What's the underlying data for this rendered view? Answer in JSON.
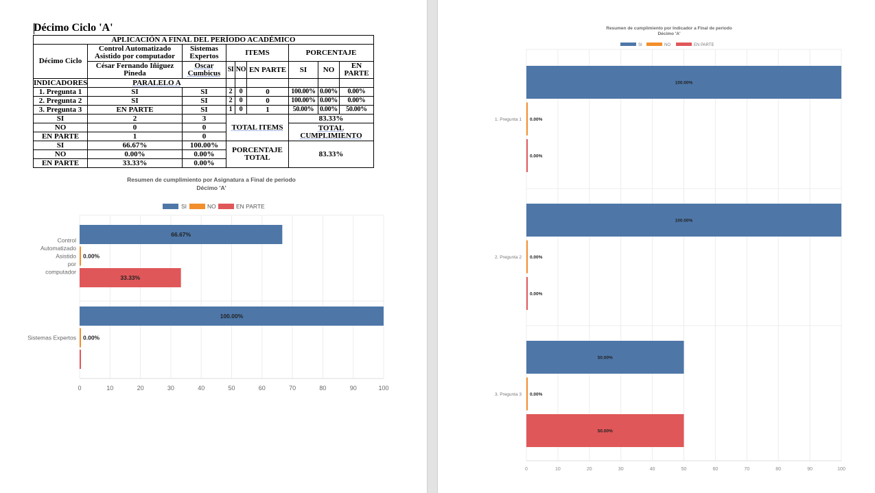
{
  "document": {
    "title": "Décimo Ciclo 'A'"
  },
  "sheet": {
    "banner": "APLICACIÓN A FINAL DEL PERÍODO ACADÉMICO",
    "h_ciclo": "Décimo Ciclo",
    "h_subject1": "Control Automatizado Asistido por computador",
    "h_subject2": "Sistemas Expertos",
    "h_items": "ITEMS",
    "h_porcentaje": "PORCENTAJE",
    "teacher1": "César Fernando Iñiguez Pineda",
    "teacher2": "Oscar Cumbicus",
    "h_si": "SI",
    "h_no": "NO",
    "h_enparte": "EN PARTE",
    "p_si": "SI",
    "p_no": "NO",
    "p_enparte": "EN PARTE",
    "indicadores": "INDICADORES",
    "paralelo": "PARALELO A",
    "rows": [
      {
        "q": "1. Pregunta 1",
        "a1": "SI",
        "a2": "SI",
        "si": "2",
        "no": "0",
        "ep": "0",
        "psi": "100.00%",
        "pno": "0.00%",
        "pep": "0.00%"
      },
      {
        "q": "2. Pregunta 2",
        "a1": "SI",
        "a2": "SI",
        "si": "2",
        "no": "0",
        "ep": "0",
        "psi": "100.00%",
        "pno": "0.00%",
        "pep": "0.00%"
      },
      {
        "q": "3. Pregunta 3",
        "a1": "EN PARTE",
        "a2": "SI",
        "si": "1",
        "no": "0",
        "ep": "1",
        "psi": "50.00%",
        "pno": "0.00%",
        "pep": "50.00%"
      }
    ],
    "counts": [
      {
        "label": "SI",
        "v1": "2",
        "v2": "3"
      },
      {
        "label": "NO",
        "v1": "0",
        "v2": "0"
      },
      {
        "label": "EN PARTE",
        "v1": "1",
        "v2": "0"
      }
    ],
    "percents": [
      {
        "label": "SI",
        "v1": "66.67%",
        "v2": "100.00%"
      },
      {
        "label": "NO",
        "v1": "0.00%",
        "v2": "0.00%"
      },
      {
        "label": "EN PARTE",
        "v1": "33.33%",
        "v2": "0.00%"
      }
    ],
    "total_items_label": "TOTAL ITEMS",
    "total_items_value": "83.33%",
    "total_cumplimiento_label": "TOTAL CUMPLIMIENTO",
    "porcentaje_total_label": "PORCENTAJE TOTAL",
    "porcentaje_total_value": "83.33%"
  },
  "colors": {
    "si": "#4e77a8",
    "no": "#f28e2b",
    "enparte": "#e05759"
  },
  "chart_data": [
    {
      "type": "bar",
      "orientation": "horizontal",
      "title": "Resumen de cumplimiento por Asignatura a Final de periodo",
      "subtitle": "Décimo 'A'",
      "categories": [
        "Control Automatizado Asistido por computador",
        "Sistemas Expertos"
      ],
      "category_lines": [
        [
          "Control",
          "Automatizado",
          "Asistido",
          "por",
          "computador"
        ],
        [
          "Sistemas Expertos"
        ]
      ],
      "series": [
        {
          "name": "SI",
          "values": [
            66.67,
            100
          ]
        },
        {
          "name": "NO",
          "values": [
            0,
            0
          ]
        },
        {
          "name": "EN PARTE",
          "values": [
            33.33,
            0
          ]
        }
      ],
      "data_labels": [
        [
          "66.67%",
          "100.00%"
        ],
        [
          "0.00%",
          "0.00%"
        ],
        [
          "33.33%",
          ""
        ]
      ],
      "xlim": [
        0,
        100
      ],
      "xticks": [
        "0",
        "10",
        "20",
        "30",
        "40",
        "50",
        "60",
        "70",
        "80",
        "90",
        "100"
      ],
      "legend": "top",
      "grid": true
    },
    {
      "type": "bar",
      "orientation": "horizontal",
      "title": "Resumen de cumplimiento por Indicador a Final de periodo",
      "subtitle": "Décimo 'A'",
      "categories": [
        "1. Pregunta 1",
        "2. Pregunta 2",
        "3. Pregunta 3"
      ],
      "series": [
        {
          "name": "SI",
          "values": [
            100,
            100,
            50
          ]
        },
        {
          "name": "NO",
          "values": [
            0,
            0,
            0
          ]
        },
        {
          "name": "EN PARTE",
          "values": [
            0,
            0,
            50
          ]
        }
      ],
      "data_labels": [
        [
          "100.00%",
          "100.00%",
          "50.00%"
        ],
        [
          "0.00%",
          "0.00%",
          "0.00%"
        ],
        [
          "0.00%",
          "0.00%",
          "50.00%"
        ]
      ],
      "xlim": [
        0,
        100
      ],
      "xticks": [
        "0",
        "10",
        "20",
        "30",
        "40",
        "50",
        "60",
        "70",
        "80",
        "90",
        "100"
      ],
      "legend": "top",
      "grid": true
    }
  ]
}
